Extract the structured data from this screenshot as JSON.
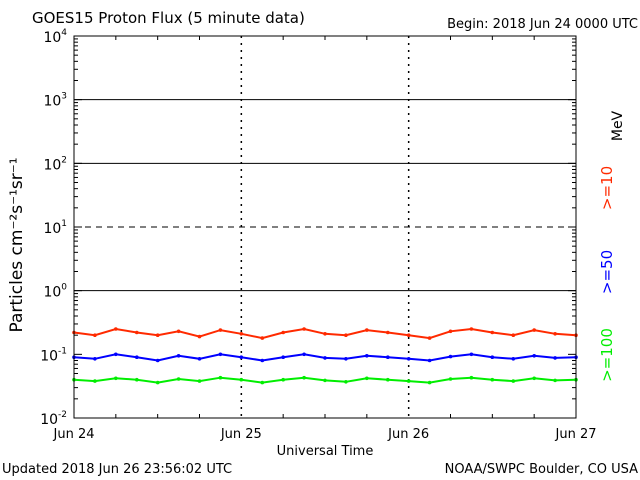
{
  "header": {
    "title": "GOES15 Proton Flux (5 minute data)",
    "begin": "Begin: 2018 Jun 24 0000 UTC"
  },
  "footer": {
    "updated": "Updated 2018 Jun 26 23:56:02 UTC",
    "credit": "NOAA/SWPC Boulder, CO USA"
  },
  "chart_data": {
    "type": "line",
    "title": "GOES15 Proton Flux (5 minute data)",
    "xlabel": "Universal Time",
    "ylabel": "Particles cm⁻²s⁻¹sr⁻¹",
    "yscale": "log",
    "ylim": [
      0.01,
      10000
    ],
    "xlim": [
      0,
      72
    ],
    "x_unit": "hours since 2018 Jun 24 0000 UTC",
    "xticks": [
      {
        "x": 0,
        "label": "Jun 24"
      },
      {
        "x": 24,
        "label": "Jun 25"
      },
      {
        "x": 48,
        "label": "Jun 26"
      },
      {
        "x": 72,
        "label": "Jun 27"
      }
    ],
    "yticks": [
      {
        "value": 0.01,
        "base": "10",
        "exp": "-2"
      },
      {
        "value": 0.1,
        "base": "10",
        "exp": "-1"
      },
      {
        "value": 1,
        "base": "10",
        "exp": "0"
      },
      {
        "value": 10,
        "base": "10",
        "exp": "1"
      },
      {
        "value": 100,
        "base": "10",
        "exp": "2"
      },
      {
        "value": 1000,
        "base": "10",
        "exp": "3"
      },
      {
        "value": 10000,
        "base": "10",
        "exp": "4"
      }
    ],
    "threshold_lines": [
      {
        "value": 1,
        "style": "solid"
      },
      {
        "value": 10,
        "style": "dashed"
      },
      {
        "value": 100,
        "style": "solid"
      },
      {
        "value": 1000,
        "style": "solid"
      }
    ],
    "legend_unit": "MeV",
    "series": [
      {
        "name": ">=10",
        "color": "#ff2a00",
        "x": [
          0,
          3,
          6,
          9,
          12,
          15,
          18,
          21,
          24,
          27,
          30,
          33,
          36,
          39,
          42,
          45,
          48,
          51,
          54,
          57,
          60,
          63,
          66,
          69,
          72
        ],
        "y": [
          0.22,
          0.2,
          0.25,
          0.22,
          0.2,
          0.23,
          0.19,
          0.24,
          0.21,
          0.18,
          0.22,
          0.25,
          0.21,
          0.2,
          0.24,
          0.22,
          0.2,
          0.18,
          0.23,
          0.25,
          0.22,
          0.2,
          0.24,
          0.21,
          0.2
        ]
      },
      {
        "name": ">=50",
        "color": "#0000ff",
        "x": [
          0,
          3,
          6,
          9,
          12,
          15,
          18,
          21,
          24,
          27,
          30,
          33,
          36,
          39,
          42,
          45,
          48,
          51,
          54,
          57,
          60,
          63,
          66,
          69,
          72
        ],
        "y": [
          0.09,
          0.085,
          0.1,
          0.09,
          0.08,
          0.095,
          0.085,
          0.1,
          0.09,
          0.08,
          0.09,
          0.1,
          0.088,
          0.085,
          0.095,
          0.09,
          0.085,
          0.08,
          0.092,
          0.1,
          0.09,
          0.085,
          0.095,
          0.088,
          0.09
        ]
      },
      {
        "name": ">=100",
        "color": "#00ee00",
        "x": [
          0,
          3,
          6,
          9,
          12,
          15,
          18,
          21,
          24,
          27,
          30,
          33,
          36,
          39,
          42,
          45,
          48,
          51,
          54,
          57,
          60,
          63,
          66,
          69,
          72
        ],
        "y": [
          0.04,
          0.038,
          0.042,
          0.04,
          0.036,
          0.041,
          0.038,
          0.043,
          0.04,
          0.036,
          0.04,
          0.043,
          0.039,
          0.037,
          0.042,
          0.04,
          0.038,
          0.036,
          0.041,
          0.043,
          0.04,
          0.038,
          0.042,
          0.039,
          0.04
        ]
      }
    ]
  }
}
